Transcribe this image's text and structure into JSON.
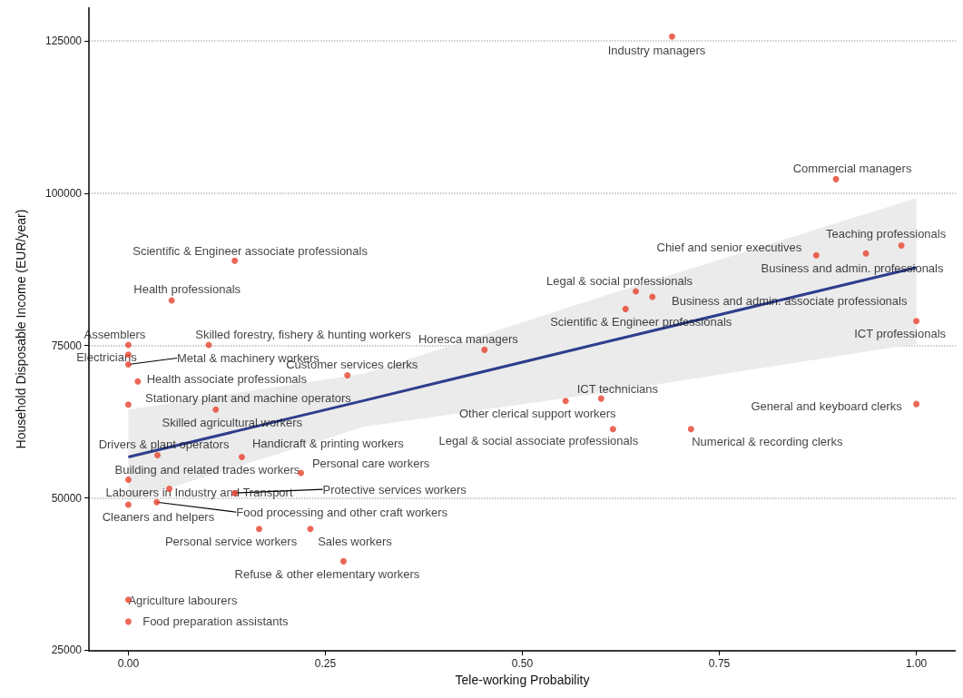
{
  "chart_data": {
    "type": "scatter",
    "xlabel": "Tele-working Probability",
    "ylabel": "Household Disposable Income (EUR/year)",
    "xlim": [
      -0.05,
      1.05
    ],
    "ylim": [
      24900,
      130500
    ],
    "xticks": [
      {
        "value": 0,
        "label": "0.00"
      },
      {
        "value": 0.25,
        "label": "0.25"
      },
      {
        "value": 0.5,
        "label": "0.50"
      },
      {
        "value": 0.75,
        "label": "0.75"
      },
      {
        "value": 1,
        "label": "1.00"
      }
    ],
    "yticks": [
      25000,
      50000,
      75000,
      100000,
      125000
    ],
    "grid": "y",
    "marker": "circle",
    "series": [
      {
        "color": "#e8412c",
        "x": [
          0.69,
          0.898,
          0.981,
          0.873,
          0.936,
          1.0,
          1.0,
          0.644,
          0.665,
          0.631,
          0.452,
          0.6,
          0.555,
          0.615,
          0.714,
          0.278,
          0.135,
          0.055,
          0.102,
          0.0,
          0.0,
          0.0,
          0.012,
          0.0,
          0.111,
          0.037,
          0.144,
          0.219,
          0.0,
          0.052,
          0.135,
          0.0,
          0.036,
          0.166,
          0.231,
          0.273,
          0.0,
          0.0
        ],
        "values": [
          125700,
          102300,
          91400,
          89800,
          90100,
          79000,
          65400,
          83900,
          83000,
          81000,
          74300,
          66300,
          65900,
          61300,
          61300,
          70100,
          88900,
          82400,
          75100,
          75100,
          73500,
          71900,
          69100,
          65300,
          64500,
          57000,
          56700,
          54100,
          53000,
          51500,
          50800,
          48900,
          49300,
          44900,
          44900,
          39600,
          33300,
          29700
        ]
      },
      {
        "type": "line",
        "color": "#2e3e8c",
        "line_style": "solid",
        "marker": "none",
        "x": [
          0,
          0.3,
          0.6,
          1
        ],
        "values": [
          56700,
          66000,
          75400,
          87800
        ],
        "lower": [
          49500,
          61700,
          67200,
          75300
        ],
        "upper": [
          64500,
          70400,
          83000,
          99200
        ]
      }
    ],
    "annotations": [
      {
        "text": "Industry managers",
        "x": 0.69,
        "y": 125700
      },
      {
        "text": "Commercial managers",
        "x": 0.898,
        "y": 102300
      },
      {
        "text": "Teaching professionals",
        "x": 0.981,
        "y": 91400
      },
      {
        "text": "Chief and senior executives",
        "x": 0.873,
        "y": 89800
      },
      {
        "text": "Business and admin. professionals",
        "x": 0.936,
        "y": 90100
      },
      {
        "text": "ICT professionals",
        "x": 1.0,
        "y": 79000
      },
      {
        "text": "General and keyboard clerks",
        "x": 1.0,
        "y": 65400
      },
      {
        "text": "Legal & social professionals",
        "x": 0.644,
        "y": 83900
      },
      {
        "text": "Business and admin. associate professionals",
        "x": 0.665,
        "y": 83000
      },
      {
        "text": "Scientific & Engineer professionals",
        "x": 0.631,
        "y": 81000
      },
      {
        "text": "Horesca managers",
        "x": 0.452,
        "y": 74300
      },
      {
        "text": "ICT technicians",
        "x": 0.6,
        "y": 66300
      },
      {
        "text": "Other clerical support workers",
        "x": 0.555,
        "y": 65900
      },
      {
        "text": "Legal & social associate professionals",
        "x": 0.615,
        "y": 61300
      },
      {
        "text": "Numerical & recording clerks",
        "x": 0.714,
        "y": 61300
      },
      {
        "text": "Customer services clerks",
        "x": 0.278,
        "y": 70100
      },
      {
        "text": "Scientific & Engineer associate professionals",
        "x": 0.135,
        "y": 88900
      },
      {
        "text": "Health professionals",
        "x": 0.055,
        "y": 82400
      },
      {
        "text": "Skilled forestry, fishery & hunting workers",
        "x": 0.102,
        "y": 75100
      },
      {
        "text": "Assemblers",
        "x": 0.0,
        "y": 75100
      },
      {
        "text": "Electricians",
        "x": 0.0,
        "y": 73500
      },
      {
        "text": "Metal & machinery workers",
        "x": 0.0,
        "y": 71900
      },
      {
        "text": "Health associate professionals",
        "x": 0.012,
        "y": 69100
      },
      {
        "text": "Stationary plant and machine operators",
        "x": 0.0,
        "y": 65300
      },
      {
        "text": "Skilled agricultural workers",
        "x": 0.111,
        "y": 64500
      },
      {
        "text": "Drivers & plant operators",
        "x": 0.037,
        "y": 57000
      },
      {
        "text": "Handicraft & printing workers",
        "x": 0.144,
        "y": 56700
      },
      {
        "text": "Personal care workers",
        "x": 0.219,
        "y": 54100
      },
      {
        "text": "Building and related trades workers",
        "x": 0.0,
        "y": 53000
      },
      {
        "text": "Labourers in Industry and Transport",
        "x": 0.052,
        "y": 51500
      },
      {
        "text": "Protective services workers",
        "x": 0.135,
        "y": 50800
      },
      {
        "text": "Cleaners and helpers",
        "x": 0.0,
        "y": 48900
      },
      {
        "text": "Food processing and other craft workers",
        "x": 0.036,
        "y": 49300
      },
      {
        "text": "Personal service workers",
        "x": 0.166,
        "y": 44900
      },
      {
        "text": "Sales workers",
        "x": 0.231,
        "y": 44900
      },
      {
        "text": "Refuse & other elementary workers",
        "x": 0.273,
        "y": 39600
      },
      {
        "text": "Agriculture labourers",
        "x": 0.0,
        "y": 33300
      },
      {
        "text": "Food preparation assistants",
        "x": 0.0,
        "y": 29700
      }
    ]
  }
}
